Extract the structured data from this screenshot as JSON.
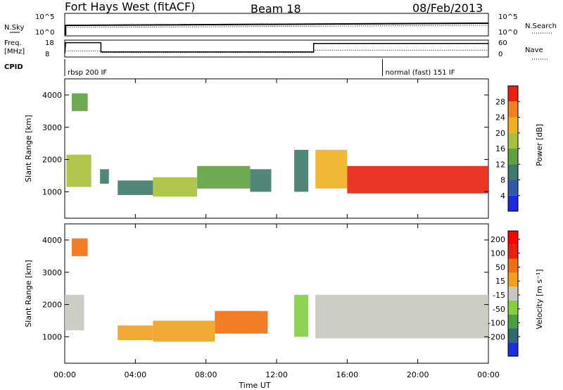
{
  "header": {
    "radar": "Fort Hays West (fitACF)",
    "beam": "Beam 18",
    "date": "08/Feb/2013"
  },
  "summary": {
    "nsky_label": "N.Sky",
    "nsearch_label": "N.Search",
    "freq_label_line1": "Freq.",
    "freq_label_line2": "[MHz]",
    "nave_label": "Nave",
    "cpid_label": "CPID",
    "nsky_ticks": [
      "10^5",
      "10^0"
    ],
    "nsearch_ticks": [
      "10^5",
      "10^0"
    ],
    "freq_ticks": [
      "18",
      "8"
    ],
    "nave_ticks": [
      "60",
      "0"
    ],
    "cpid_segments": [
      {
        "start_hour": 0,
        "label": "rbsp 200 IF"
      },
      {
        "start_hour": 18,
        "label": "normal (fast) 151 IF"
      }
    ],
    "freq_series": [
      {
        "hour": 0.0,
        "mhz": 10.2
      },
      {
        "hour": 0.05,
        "mhz": 16.5
      },
      {
        "hour": 2.05,
        "mhz": 16.5
      },
      {
        "hour": 2.05,
        "mhz": 11.0
      },
      {
        "hour": 14.1,
        "mhz": 11.0
      },
      {
        "hour": 14.1,
        "mhz": 16.0
      },
      {
        "hour": 24.0,
        "mhz": 16.0
      }
    ],
    "nave_series": [
      {
        "hour": 0.05,
        "value": 22
      },
      {
        "hour": 2.05,
        "value": 22
      },
      {
        "hour": 2.05,
        "value": 16
      },
      {
        "hour": 14.1,
        "value": 16
      },
      {
        "hour": 14.1,
        "value": 24
      },
      {
        "hour": 24.0,
        "value": 24
      }
    ]
  },
  "chart_data": [
    {
      "type": "heatmap",
      "parameter": "Power",
      "ylabel": "Slant Range [km]",
      "xlabel": "Time UT",
      "xlim": [
        0,
        24
      ],
      "ylim": [
        180,
        4500
      ],
      "yticks": [
        1000,
        2000,
        3000,
        4000
      ],
      "colorbar_label": "Power [dB]",
      "colorbar_ticks": [
        "4",
        "8",
        "12",
        "16",
        "20",
        "24",
        "28"
      ],
      "colors": [
        "#1d28e0",
        "#2e5aa8",
        "#3d7a6c",
        "#5ea13e",
        "#a8c03a",
        "#f0b020",
        "#f08020",
        "#e82010"
      ],
      "patches": [
        {
          "t0": 0.1,
          "t1": 1.5,
          "r0": 1150,
          "r1": 2150,
          "level": 4
        },
        {
          "t0": 0.4,
          "t1": 1.3,
          "r0": 3500,
          "r1": 4050,
          "level": 3
        },
        {
          "t0": 2.0,
          "t1": 2.5,
          "r0": 1250,
          "r1": 1700,
          "level": 2
        },
        {
          "t0": 3.0,
          "t1": 5.0,
          "r0": 900,
          "r1": 1350,
          "level": 2
        },
        {
          "t0": 5.0,
          "t1": 7.5,
          "r0": 850,
          "r1": 1450,
          "level": 4
        },
        {
          "t0": 7.5,
          "t1": 10.5,
          "r0": 1100,
          "r1": 1800,
          "level": 3
        },
        {
          "t0": 10.5,
          "t1": 11.7,
          "r0": 1000,
          "r1": 1700,
          "level": 2
        },
        {
          "t0": 13.0,
          "t1": 13.8,
          "r0": 1000,
          "r1": 2300,
          "level": 2
        },
        {
          "t0": 14.2,
          "t1": 16.0,
          "r0": 1100,
          "r1": 2300,
          "level": 5
        },
        {
          "t0": 16.0,
          "t1": 24.0,
          "r0": 950,
          "r1": 1800,
          "level": 7
        }
      ]
    },
    {
      "type": "heatmap",
      "parameter": "Velocity",
      "ylabel": "Slant Range [km]",
      "xlabel": "Time UT",
      "xlim": [
        0,
        24
      ],
      "ylim": [
        180,
        4500
      ],
      "yticks": [
        1000,
        2000,
        3000,
        4000
      ],
      "xticks": [
        "00:00",
        "04:00",
        "08:00",
        "12:00",
        "16:00",
        "20:00",
        "00:00"
      ],
      "colorbar_label": "Velocity [m s⁻¹]",
      "colorbar_ticks": [
        "200",
        "100",
        "50",
        "15",
        "-15",
        "-50",
        "-100",
        "-200"
      ],
      "colors": [
        "#1a30d8",
        "#2a6a70",
        "#48a040",
        "#80d040",
        "#c8c8c0",
        "#f0a020",
        "#f07010",
        "#e82010",
        "#ff0000"
      ],
      "patches": [
        {
          "t0": 0.0,
          "t1": 1.1,
          "r0": 1200,
          "r1": 2300,
          "level": 4
        },
        {
          "t0": 0.4,
          "t1": 1.3,
          "r0": 3500,
          "r1": 4050,
          "level": 6
        },
        {
          "t0": 3.0,
          "t1": 5.0,
          "r0": 900,
          "r1": 1350,
          "level": 5
        },
        {
          "t0": 5.0,
          "t1": 8.5,
          "r0": 850,
          "r1": 1500,
          "level": 5
        },
        {
          "t0": 8.5,
          "t1": 11.5,
          "r0": 1100,
          "r1": 1800,
          "level": 6
        },
        {
          "t0": 13.0,
          "t1": 13.8,
          "r0": 1000,
          "r1": 2300,
          "level": 3
        },
        {
          "t0": 14.2,
          "t1": 24.0,
          "r0": 950,
          "r1": 2300,
          "level": 4
        }
      ]
    }
  ],
  "style": {
    "nsearch_legend_line": "dotted",
    "nave_legend_line": "dotted"
  }
}
